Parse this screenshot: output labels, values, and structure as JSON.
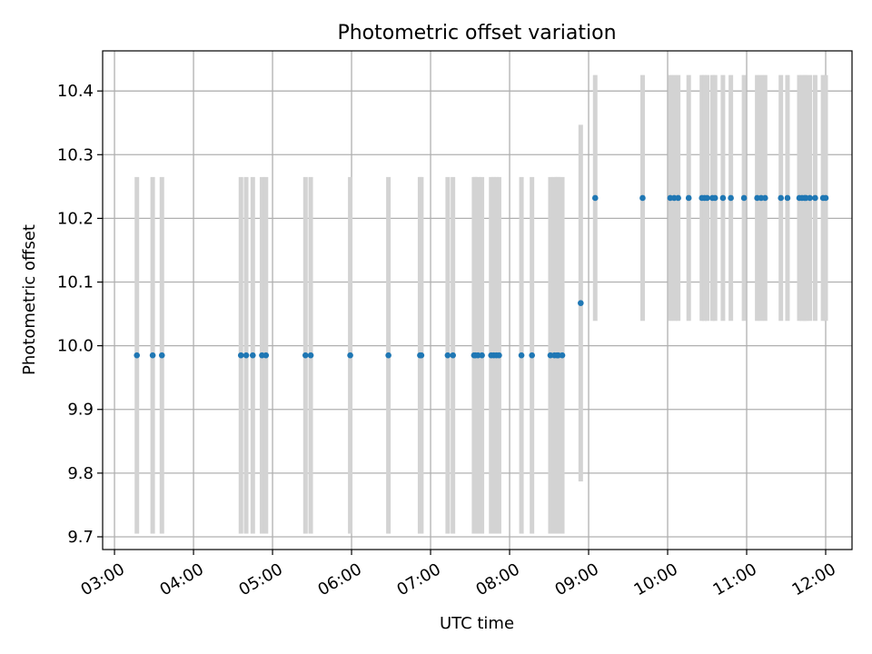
{
  "chart_data": {
    "type": "scatter",
    "title": "Photometric offset variation",
    "xlabel": "UTC time",
    "ylabel": "Photometric offset",
    "xlim": [
      "02:51",
      "12:20"
    ],
    "ylim": [
      9.68,
      10.463
    ],
    "grid": true,
    "x_ticks": [
      "03:00",
      "04:00",
      "05:00",
      "06:00",
      "07:00",
      "08:00",
      "09:00",
      "10:00",
      "11:00",
      "12:00"
    ],
    "y_ticks": [
      "9.7",
      "9.8",
      "9.9",
      "10.0",
      "10.1",
      "10.2",
      "10.3",
      "10.4"
    ],
    "colors": {
      "marker": "#1f77b4",
      "errorbar": "#d3d3d3",
      "grid": "#b0b0b0"
    },
    "series": [
      {
        "y_value": 9.985,
        "y_error": 0.28,
        "x": [
          "03:17",
          "03:29",
          "03:36",
          "04:36",
          "04:40",
          "04:45",
          "04:52",
          "04:55",
          "05:25",
          "05:29",
          "05:59",
          "06:28",
          "06:52",
          "06:53",
          "07:13",
          "07:17",
          "07:33",
          "07:34",
          "07:36",
          "07:39",
          "07:46",
          "07:48",
          "07:50",
          "07:52",
          "08:09",
          "08:17",
          "08:31",
          "08:34",
          "08:36",
          "08:37",
          "08:40"
        ]
      },
      {
        "y_value": 10.067,
        "y_error": 0.28,
        "x": [
          "08:54"
        ]
      },
      {
        "y_value": 10.232,
        "y_error": 0.193,
        "x": [
          "09:05",
          "09:41",
          "10:02",
          "10:05",
          "10:08",
          "10:16",
          "10:26",
          "10:28",
          "10:30",
          "10:34",
          "10:36",
          "10:42",
          "10:48",
          "10:58",
          "11:08",
          "11:11",
          "11:14",
          "11:26",
          "11:31",
          "11:40",
          "11:42",
          "11:44",
          "11:45",
          "11:48",
          "11:52",
          "11:58",
          "12:00"
        ]
      }
    ]
  }
}
